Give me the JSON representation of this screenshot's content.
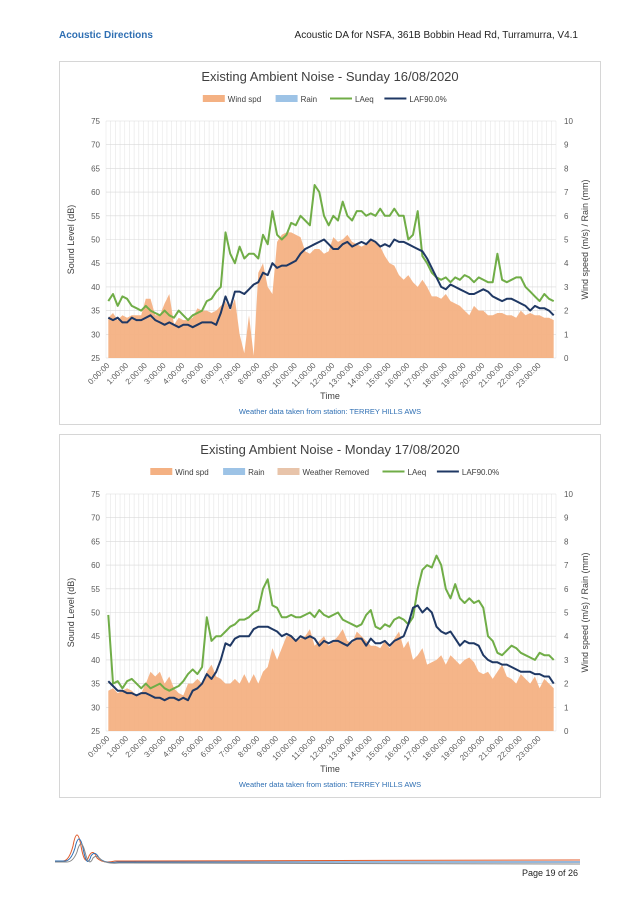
{
  "header": {
    "company": "Acoustic Directions",
    "doc_title": "Acoustic DA for NSFA, 361B Bobbin Head Rd, Turramurra, V4.1"
  },
  "footer": {
    "page": "Page 19 of 26"
  },
  "colors": {
    "wind": "#f4b183",
    "weather_removed": "#e8c4aa",
    "rain": "#9dc3e6",
    "laeq": "#70ad47",
    "laf90": "#1f3864",
    "header_link": "#2f6fb3"
  },
  "chart_data": [
    {
      "type": "line",
      "title": "Existing Ambient Noise - Sunday 16/08/2020",
      "xlabel": "Time",
      "ylabel": "Sound Level (dB)",
      "y2label": "Wind speed (m/s) / Rain (mm)",
      "ylim": [
        25,
        75
      ],
      "y2lim": [
        0,
        10
      ],
      "yticks": [
        25,
        30,
        35,
        40,
        45,
        50,
        55,
        60,
        65,
        70,
        75
      ],
      "y2ticks": [
        0,
        1,
        2,
        3,
        4,
        5,
        6,
        7,
        8,
        9,
        10
      ],
      "xticks": [
        "0:00:00",
        "1:00:00",
        "2:00:00",
        "3:00:00",
        "4:00:00",
        "5:00:00",
        "6:00:00",
        "7:00:00",
        "8:00:00",
        "9:00:00",
        "10:00:00",
        "11:00:00",
        "12:00:00",
        "13:00:00",
        "14:00:00",
        "15:00:00",
        "16:00:00",
        "17:00:00",
        "18:00:00",
        "19:00:00",
        "20:00:00",
        "21:00:00",
        "22:00:00",
        "23:00:00"
      ],
      "legend": [
        "Wind spd",
        "Rain",
        "LAeq",
        "LAF90.0%"
      ],
      "legend_position": "top",
      "grid": true,
      "note": "Weather data taken from station: TERREY HILLS AWS",
      "series": [
        {
          "name": "Wind spd",
          "kind": "area",
          "values": [
            1.7,
            1.9,
            1.6,
            1.8,
            1.7,
            1.8,
            1.8,
            1.8,
            2.5,
            2.5,
            1.8,
            1.8,
            2.3,
            2.7,
            1.4,
            1.7,
            1.6,
            1.6,
            1.7,
            2.1,
            2.0,
            2.0,
            1.9,
            2.0,
            2.2,
            2.4,
            2.0,
            2.5,
            1.0,
            0.2,
            1.8,
            0.1,
            3.6,
            4.0,
            3.0,
            2.7,
            4.9,
            5.2,
            5.3,
            5.3,
            5.2,
            5.1,
            4.5,
            4.4,
            4.6,
            4.6,
            4.4,
            4.5,
            5.1,
            4.9,
            5.0,
            5.2,
            4.9,
            4.8,
            4.7,
            4.8,
            5.0,
            4.9,
            4.7,
            4.3,
            4.0,
            3.9,
            3.5,
            3.3,
            3.5,
            3.2,
            3.0,
            3.3,
            3.0,
            2.6,
            2.6,
            2.5,
            2.7,
            2.4,
            2.3,
            2.2,
            2.0,
            1.8,
            2.2,
            2.0,
            2.0,
            1.8,
            1.8,
            1.9,
            1.9,
            1.8,
            1.8,
            1.7,
            2.0,
            1.8,
            1.9,
            1.8,
            1.8,
            1.7,
            1.7,
            1.6
          ]
        },
        {
          "name": "LAeq",
          "kind": "line",
          "values": [
            37,
            38.5,
            36,
            38,
            37.5,
            36,
            35.5,
            35,
            36,
            35,
            34.5,
            34,
            35,
            34,
            33.5,
            35,
            34,
            33,
            34,
            34.5,
            35,
            37,
            37.5,
            39,
            40,
            51.5,
            47,
            45,
            48.5,
            46,
            47,
            47,
            46,
            51,
            49,
            56,
            51,
            50,
            51,
            53.5,
            53,
            55,
            54,
            53,
            61.5,
            60,
            55,
            53,
            55,
            54,
            58,
            55,
            54,
            56,
            56,
            55,
            55.5,
            55,
            56.5,
            55,
            55,
            56.5,
            55,
            55,
            50,
            51,
            56,
            46.5,
            45,
            43,
            42,
            41.5,
            42,
            41,
            42,
            41.5,
            42.5,
            42,
            41,
            42,
            41.5,
            41,
            41,
            47,
            41.5,
            41,
            41.5,
            42,
            42,
            40,
            39,
            38,
            37,
            38.5,
            37.5,
            37
          ]
        },
        {
          "name": "LAF90.0%",
          "kind": "line",
          "values": [
            33.5,
            33,
            33.5,
            32.5,
            32.5,
            33.5,
            33,
            33,
            33.5,
            34,
            33,
            32.5,
            32,
            32.5,
            32,
            31.5,
            32,
            32,
            31.5,
            32,
            32.5,
            32.5,
            32.5,
            32,
            34.5,
            38,
            35.5,
            39,
            39,
            38.5,
            39.5,
            40.5,
            41,
            43,
            42.5,
            45,
            44,
            44.5,
            44.5,
            45,
            45.5,
            47,
            48,
            48.5,
            49,
            49.5,
            50,
            49,
            48,
            48,
            49,
            49.5,
            48.5,
            49,
            49.5,
            49,
            50,
            49.5,
            48.5,
            49,
            48.5,
            50,
            49.5,
            49.5,
            49,
            48.5,
            48,
            47.5,
            46,
            44,
            42,
            40,
            39.5,
            40.5,
            40,
            39.5,
            39,
            38.5,
            38.5,
            39,
            39.5,
            39,
            38,
            37.5,
            37,
            37.5,
            37.5,
            37,
            36.5,
            36,
            35,
            36,
            35.5,
            35.5,
            35,
            34
          ]
        }
      ]
    },
    {
      "type": "line",
      "title": "Existing Ambient Noise - Monday 17/08/2020",
      "xlabel": "Time",
      "ylabel": "Sound Level (dB)",
      "y2label": "Wind speed (m/s) / Rain (mm)",
      "ylim": [
        25,
        75
      ],
      "y2lim": [
        0,
        10
      ],
      "yticks": [
        25,
        30,
        35,
        40,
        45,
        50,
        55,
        60,
        65,
        70,
        75
      ],
      "y2ticks": [
        0,
        1,
        2,
        3,
        4,
        5,
        6,
        7,
        8,
        9,
        10
      ],
      "xticks": [
        "0:00:00",
        "1:00:00",
        "2:00:00",
        "3:00:00",
        "4:00:00",
        "5:00:00",
        "6:00:00",
        "7:00:00",
        "8:00:00",
        "9:00:00",
        "10:00:00",
        "11:00:00",
        "12:00:00",
        "13:00:00",
        "14:00:00",
        "15:00:00",
        "16:00:00",
        "17:00:00",
        "18:00:00",
        "19:00:00",
        "20:00:00",
        "21:00:00",
        "22:00:00",
        "23:00:00"
      ],
      "legend": [
        "Wind spd",
        "Rain",
        "Weather Removed",
        "LAeq",
        "LAF90.0%"
      ],
      "legend_position": "top",
      "grid": true,
      "note": "Weather data taken from station: TERREY HILLS AWS",
      "series": [
        {
          "name": "Wind spd",
          "kind": "area",
          "values": [
            1.7,
            1.8,
            1.6,
            1.7,
            1.8,
            1.7,
            1.5,
            1.6,
            2.0,
            2.5,
            2.3,
            2.5,
            2.0,
            2.3,
            1.8,
            1.6,
            1.5,
            2.0,
            2.0,
            2.2,
            2.0,
            2.5,
            2.8,
            2.3,
            2.2,
            2.0,
            2.0,
            2.2,
            2.0,
            2.4,
            2.0,
            2.4,
            2.0,
            2.5,
            2.7,
            3.5,
            3.0,
            3.5,
            4.0,
            4.0,
            3.8,
            3.9,
            4.0,
            4.3,
            3.6,
            3.8,
            4.0,
            3.6,
            3.8,
            4.0,
            4.3,
            3.8,
            3.7,
            4.2,
            4.0,
            3.8,
            3.6,
            3.6,
            3.5,
            3.8,
            3.5,
            3.9,
            4.2,
            3.5,
            3.8,
            3.0,
            3.2,
            3.5,
            2.8,
            2.9,
            3.0,
            3.2,
            2.8,
            3.2,
            3.0,
            2.8,
            3.0,
            3.1,
            2.9,
            2.5,
            2.4,
            2.5,
            2.2,
            2.5,
            2.8,
            2.3,
            2.2,
            2.0,
            2.4,
            2.2,
            2.0,
            2.3,
            1.8,
            2.2,
            2.0,
            1.8
          ]
        },
        {
          "name": "LAeq",
          "kind": "line",
          "values": [
            49.5,
            35,
            35.5,
            34,
            35.5,
            36,
            35,
            34,
            35,
            34,
            34.5,
            35,
            34,
            33.5,
            34,
            34.5,
            35.5,
            37,
            38,
            37,
            38.5,
            49,
            44,
            45,
            45,
            46,
            47,
            47.5,
            48.5,
            48.5,
            49,
            50,
            50.5,
            55,
            57,
            51.5,
            51,
            49,
            49,
            49.5,
            49,
            49,
            49.5,
            50,
            49,
            50.5,
            49.5,
            49,
            49.5,
            50,
            48.5,
            48,
            47.5,
            47,
            47.5,
            49.5,
            50.5,
            47,
            46.5,
            47.5,
            47,
            48.5,
            49,
            48.5,
            47.5,
            49,
            55,
            59,
            60,
            59.5,
            62,
            60,
            55,
            53,
            56,
            53,
            52,
            53,
            52,
            52.5,
            51,
            45,
            44,
            41.5,
            41,
            42,
            43,
            42.5,
            41.5,
            41,
            40.5,
            40,
            41.5,
            41,
            41,
            40
          ]
        },
        {
          "name": "LAF90.0%",
          "kind": "line",
          "values": [
            35.5,
            34.5,
            33.5,
            33.5,
            33,
            33,
            32.5,
            33,
            33,
            32.5,
            32,
            32,
            31.5,
            32,
            32,
            31.5,
            32,
            31.5,
            33.5,
            34,
            35,
            37,
            36,
            37.5,
            40,
            43.5,
            43,
            44.5,
            45,
            45,
            45,
            46.5,
            47,
            47,
            47,
            46.5,
            46,
            45,
            45.5,
            45,
            44,
            45,
            44.5,
            45,
            44.5,
            43,
            44,
            43.5,
            44,
            44,
            43.5,
            43,
            44,
            44.5,
            44.5,
            43,
            44.5,
            43.5,
            43.5,
            44,
            43,
            44,
            44.5,
            45,
            47.5,
            51,
            51.5,
            50,
            51,
            50,
            47,
            46,
            45.5,
            46,
            44.5,
            43,
            44,
            43.5,
            43.5,
            43,
            41,
            40,
            39.5,
            39.5,
            39,
            39,
            38.5,
            38,
            37.5,
            37.5,
            37.5,
            37,
            37,
            36.5,
            36.5,
            35
          ]
        }
      ]
    }
  ]
}
